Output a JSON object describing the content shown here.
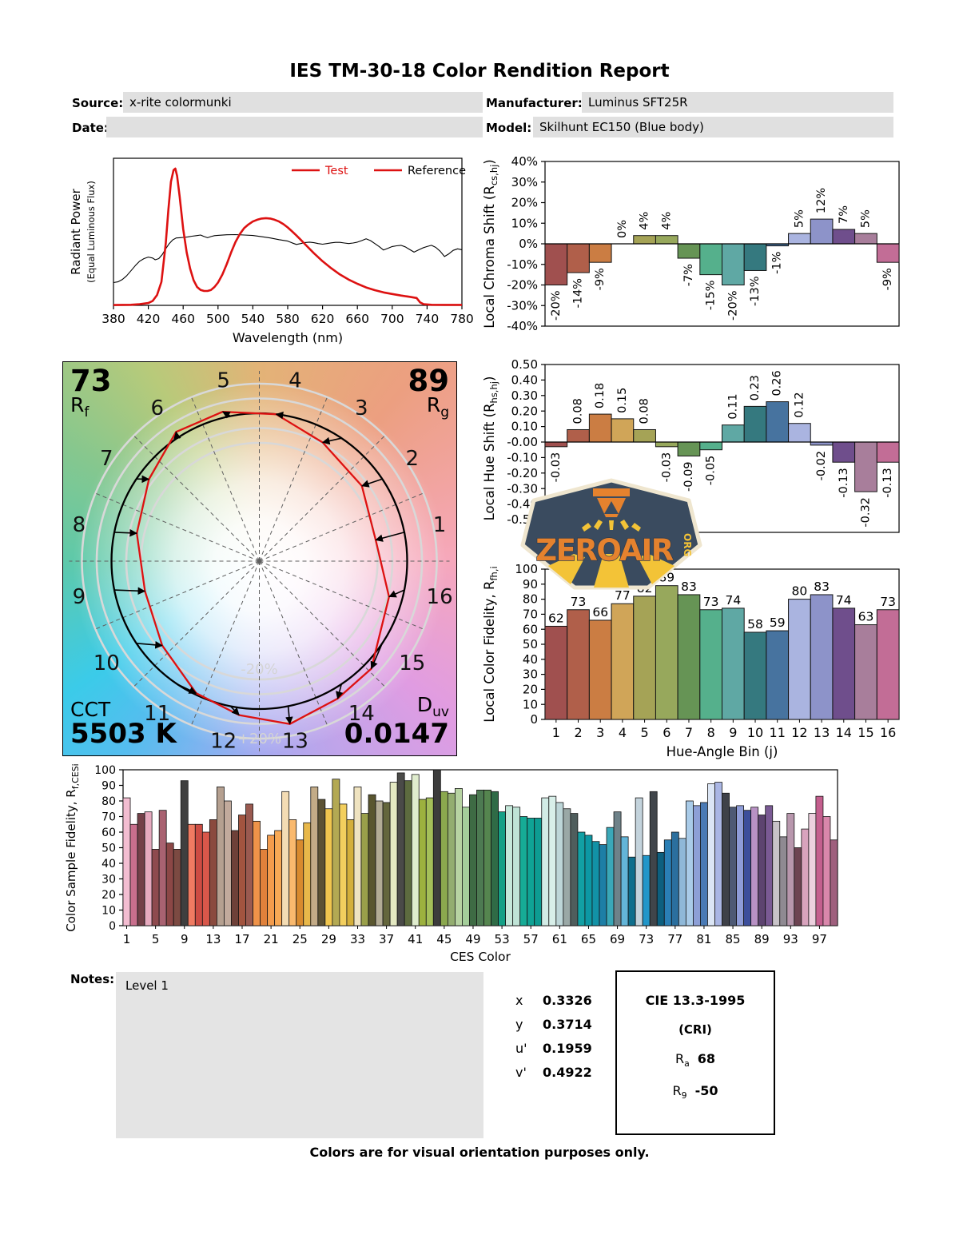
{
  "title": "IES TM-30-18 Color Rendition Report",
  "header": {
    "source_label": "Source:",
    "source_value": "x-rite colormunki",
    "manufacturer_label": "Manufacturer:",
    "manufacturer_value": "Luminus SFT25R",
    "date_label": "Date:",
    "date_value": "",
    "model_label": "Model:",
    "model_value": "Skilhunt EC150 (Blue body)"
  },
  "colors": {
    "test": "#dd1111",
    "reference": "#000000",
    "axis": "#000000",
    "ring_gray": "#d8d8d8",
    "hue_bins": [
      "#a0504f",
      "#b05f4a",
      "#cb7d43",
      "#d0a558",
      "#a5a356",
      "#97a85c",
      "#669455",
      "#55b08c",
      "#5fa8a4",
      "#35797f",
      "#47739f",
      "#aab4e0",
      "#8d93c9",
      "#6f4e8c",
      "#a87e9b",
      "#c26d96"
    ],
    "ces_bars": [
      "#f3bdd1",
      "#c96f8d",
      "#744048",
      "#e7aabf",
      "#8e4a4e",
      "#a96271",
      "#8c4746",
      "#7c4a42",
      "#3f3f3f",
      "#f07b62",
      "#cd4c43",
      "#d8574a",
      "#8a4a3e",
      "#b5a090",
      "#c2aa9c",
      "#6e4038",
      "#a2543f",
      "#9a5a50",
      "#ef9349",
      "#e0813b",
      "#f49c4c",
      "#f8a955",
      "#f3dcb4",
      "#f9b96e",
      "#d88a2e",
      "#e8b84a",
      "#c3ab87",
      "#5c5234",
      "#f0c64f",
      "#b3a953",
      "#f3cf5e",
      "#d4af3a",
      "#efe3c0",
      "#9aa04a",
      "#59562f",
      "#b3ac95",
      "#64663c",
      "#e4e9c2",
      "#4a4a48",
      "#5d6b3f",
      "#dfeccd",
      "#9cb13e",
      "#a4bf59",
      "#3c3c3c",
      "#8ba84e",
      "#93ad70",
      "#b7d3a2",
      "#a5cf9b",
      "#3e6b44",
      "#4d7a52",
      "#55854f",
      "#2f6b46",
      "#15a086",
      "#c5e8da",
      "#bfe3d6",
      "#16ab96",
      "#0fa395",
      "#0d9c92",
      "#d2ece6",
      "#d8efe9",
      "#bdd6d8",
      "#9aa8a6",
      "#4f5d5c",
      "#12a0a4",
      "#0d98a4",
      "#1292a6",
      "#1d7fa6",
      "#3aa8b8",
      "#6e8289",
      "#63b5d8",
      "#0e6e8c",
      "#c3d3dc",
      "#2196c9",
      "#40454a",
      "#0d5f7e",
      "#2a7fb5",
      "#2b6f9e",
      "#8fb8d8",
      "#a9cbe8",
      "#8d9fd6",
      "#4a7ab5",
      "#dce6f5",
      "#aab6e4",
      "#3e4148",
      "#4e5a75",
      "#8e9cd8",
      "#3c4e9b",
      "#b891c4",
      "#5d4470",
      "#7a5a94",
      "#c8c3c8",
      "#8f8a92",
      "#b897ad",
      "#6d4452",
      "#d8a3bd",
      "#ecd0de",
      "#c45f8e",
      "#d987ab",
      "#9f5f7d"
    ]
  },
  "chart_data": [
    {
      "name": "spectral_power_distribution",
      "type": "line",
      "xlabel": "Wavelength (nm)",
      "ylabel_main": "Radiant Power",
      "ylabel_sub": "(Equal Luminous Flux)",
      "xlim": [
        380,
        780
      ],
      "xticks": [
        380,
        420,
        460,
        500,
        540,
        580,
        620,
        660,
        700,
        740,
        780
      ],
      "legend": [
        "Test",
        "Reference"
      ],
      "series": [
        {
          "name": "Test",
          "points": [
            [
              380,
              0.002
            ],
            [
              400,
              0.004
            ],
            [
              410,
              0.008
            ],
            [
              420,
              0.016
            ],
            [
              425,
              0.03
            ],
            [
              430,
              0.07
            ],
            [
              435,
              0.16
            ],
            [
              440,
              0.42
            ],
            [
              443,
              0.65
            ],
            [
              446,
              0.84
            ],
            [
              449,
              0.92
            ],
            [
              451,
              0.93
            ],
            [
              453,
              0.88
            ],
            [
              456,
              0.74
            ],
            [
              460,
              0.52
            ],
            [
              464,
              0.36
            ],
            [
              468,
              0.25
            ],
            [
              472,
              0.17
            ],
            [
              476,
              0.125
            ],
            [
              480,
              0.105
            ],
            [
              484,
              0.098
            ],
            [
              488,
              0.098
            ],
            [
              492,
              0.105
            ],
            [
              496,
              0.125
            ],
            [
              500,
              0.155
            ],
            [
              505,
              0.21
            ],
            [
              510,
              0.28
            ],
            [
              515,
              0.36
            ],
            [
              520,
              0.43
            ],
            [
              525,
              0.485
            ],
            [
              530,
              0.525
            ],
            [
              535,
              0.55
            ],
            [
              540,
              0.57
            ],
            [
              545,
              0.582
            ],
            [
              550,
              0.59
            ],
            [
              555,
              0.593
            ],
            [
              560,
              0.59
            ],
            [
              565,
              0.582
            ],
            [
              570,
              0.57
            ],
            [
              575,
              0.552
            ],
            [
              580,
              0.53
            ],
            [
              585,
              0.503
            ],
            [
              590,
              0.475
            ],
            [
              595,
              0.445
            ],
            [
              600,
              0.415
            ],
            [
              610,
              0.355
            ],
            [
              620,
              0.3
            ],
            [
              630,
              0.252
            ],
            [
              640,
              0.21
            ],
            [
              650,
              0.175
            ],
            [
              660,
              0.147
            ],
            [
              670,
              0.122
            ],
            [
              680,
              0.103
            ],
            [
              690,
              0.088
            ],
            [
              700,
              0.077
            ],
            [
              710,
              0.067
            ],
            [
              720,
              0.058
            ],
            [
              728,
              0.05
            ],
            [
              732,
              0.02
            ],
            [
              736,
              0.008
            ],
            [
              745,
              0.004
            ],
            [
              760,
              0.003
            ],
            [
              780,
              0.003
            ]
          ]
        },
        {
          "name": "Reference",
          "points": [
            [
              380,
              0.155
            ],
            [
              385,
              0.16
            ],
            [
              390,
              0.175
            ],
            [
              395,
              0.2
            ],
            [
              400,
              0.235
            ],
            [
              405,
              0.27
            ],
            [
              410,
              0.3
            ],
            [
              415,
              0.318
            ],
            [
              420,
              0.328
            ],
            [
              425,
              0.322
            ],
            [
              428,
              0.31
            ],
            [
              432,
              0.318
            ],
            [
              436,
              0.345
            ],
            [
              440,
              0.385
            ],
            [
              444,
              0.42
            ],
            [
              448,
              0.445
            ],
            [
              452,
              0.458
            ],
            [
              456,
              0.46
            ],
            [
              460,
              0.462
            ],
            [
              465,
              0.465
            ],
            [
              470,
              0.47
            ],
            [
              475,
              0.474
            ],
            [
              480,
              0.478
            ],
            [
              484,
              0.468
            ],
            [
              488,
              0.46
            ],
            [
              492,
              0.468
            ],
            [
              496,
              0.474
            ],
            [
              500,
              0.476
            ],
            [
              510,
              0.48
            ],
            [
              520,
              0.481
            ],
            [
              530,
              0.478
            ],
            [
              540,
              0.475
            ],
            [
              550,
              0.467
            ],
            [
              560,
              0.458
            ],
            [
              570,
              0.447
            ],
            [
              580,
              0.437
            ],
            [
              585,
              0.425
            ],
            [
              590,
              0.414
            ],
            [
              595,
              0.42
            ],
            [
              600,
              0.427
            ],
            [
              605,
              0.43
            ],
            [
              610,
              0.426
            ],
            [
              615,
              0.42
            ],
            [
              620,
              0.416
            ],
            [
              625,
              0.42
            ],
            [
              630,
              0.425
            ],
            [
              635,
              0.428
            ],
            [
              640,
              0.428
            ],
            [
              645,
              0.424
            ],
            [
              650,
              0.42
            ],
            [
              655,
              0.424
            ],
            [
              660,
              0.43
            ],
            [
              665,
              0.44
            ],
            [
              670,
              0.452
            ],
            [
              675,
              0.44
            ],
            [
              680,
              0.42
            ],
            [
              685,
              0.4
            ],
            [
              690,
              0.376
            ],
            [
              695,
              0.388
            ],
            [
              700,
              0.4
            ],
            [
              705,
              0.405
            ],
            [
              710,
              0.408
            ],
            [
              715,
              0.398
            ],
            [
              720,
              0.38
            ],
            [
              725,
              0.362
            ],
            [
              730,
              0.376
            ],
            [
              735,
              0.39
            ],
            [
              740,
              0.4
            ],
            [
              745,
              0.408
            ],
            [
              750,
              0.394
            ],
            [
              755,
              0.368
            ],
            [
              760,
              0.332
            ],
            [
              765,
              0.35
            ],
            [
              770,
              0.374
            ],
            [
              775,
              0.384
            ],
            [
              780,
              0.378
            ]
          ]
        }
      ]
    },
    {
      "name": "local_chroma_shift",
      "type": "bar",
      "ylabel": {
        "pre": "Local Chroma Shift (R",
        "sub": "cs,hj",
        "post": ")"
      },
      "ylim": [
        -40,
        40
      ],
      "ytick_step": 10,
      "unit": "%",
      "categories": [
        1,
        2,
        3,
        4,
        5,
        6,
        7,
        8,
        9,
        10,
        11,
        12,
        13,
        14,
        15,
        16
      ],
      "values": [
        -20,
        -14,
        -9,
        0,
        4,
        4,
        -7,
        -15,
        -20,
        -13,
        -1,
        5,
        12,
        7,
        5,
        -9
      ]
    },
    {
      "name": "local_hue_shift",
      "type": "bar",
      "ylabel": {
        "pre": "Local Hue Shift (R",
        "sub": "hs,hj",
        "post": ")"
      },
      "ylim": [
        -0.5,
        0.5
      ],
      "ytick_step": 0.1,
      "categories": [
        1,
        2,
        3,
        4,
        5,
        6,
        7,
        8,
        9,
        10,
        11,
        12,
        13,
        14,
        15,
        16
      ],
      "values": [
        -0.03,
        0.08,
        0.18,
        0.15,
        0.08,
        -0.03,
        -0.09,
        -0.05,
        0.11,
        0.23,
        0.26,
        0.12,
        -0.02,
        -0.13,
        -0.32,
        -0.13
      ]
    },
    {
      "name": "local_color_fidelity",
      "type": "bar",
      "ylabel": {
        "pre": "Local Color Fidelity, R",
        "sub": "fh,i",
        "post": ""
      },
      "xlabel": "Hue-Angle Bin (j)",
      "ylim": [
        0,
        100
      ],
      "ytick_step": 10,
      "categories": [
        1,
        2,
        3,
        4,
        5,
        6,
        7,
        8,
        9,
        10,
        11,
        12,
        13,
        14,
        15,
        16
      ],
      "values": [
        62,
        73,
        66,
        77,
        82,
        89,
        83,
        73,
        74,
        58,
        59,
        80,
        83,
        74,
        63,
        73
      ]
    },
    {
      "name": "color_sample_fidelity",
      "type": "bar",
      "ylabel": {
        "pre": "Color Sample Fidelity, R",
        "sub": "f,CESi",
        "post": ""
      },
      "xlabel": "CES Color",
      "ylim": [
        0,
        100
      ],
      "ytick_step": 10,
      "xticks": [
        1,
        5,
        9,
        13,
        17,
        21,
        25,
        29,
        33,
        37,
        41,
        45,
        49,
        53,
        57,
        61,
        65,
        69,
        73,
        77,
        81,
        85,
        89,
        93,
        97
      ],
      "values": [
        82,
        65,
        72,
        73,
        49,
        74,
        53,
        49,
        93,
        65,
        65,
        60,
        68,
        89,
        80,
        61,
        71,
        78,
        67,
        49,
        58,
        61,
        86,
        68,
        55,
        66,
        89,
        81,
        75,
        94,
        78,
        68,
        89,
        72,
        84,
        80,
        79,
        92,
        98,
        93,
        97,
        81,
        82,
        100,
        86,
        85,
        88,
        76,
        84,
        87,
        87,
        86,
        73,
        77,
        76,
        70,
        69,
        69,
        82,
        83,
        79,
        75,
        72,
        60,
        58,
        54,
        52,
        63,
        73,
        57,
        44,
        82,
        45,
        86,
        47,
        55,
        60,
        56,
        80,
        77,
        79,
        91,
        92,
        85,
        76,
        77,
        74,
        76,
        71,
        77,
        67,
        57,
        72,
        50,
        62,
        72,
        83,
        70,
        55
      ]
    }
  ],
  "cvg": {
    "rf_value": "73",
    "rf_sym": "R",
    "rf_sub": "f",
    "rg_value": "89",
    "rg_sym": "R",
    "rg_sub": "g",
    "cct_label": "CCT",
    "cct_value": "5503 K",
    "duv_sym": "D",
    "duv_sub": "uv",
    "duv_value": "0.0147",
    "ring_plus": "+20%",
    "ring_minus": "-20%",
    "bins": [
      1,
      2,
      3,
      4,
      5,
      6,
      7,
      8,
      9,
      10,
      11,
      12,
      13,
      14,
      15,
      16
    ]
  },
  "logo": {
    "word": "ZEROAIR",
    "org": "ORG"
  },
  "notes": {
    "label": "Notes:",
    "text": "Level 1"
  },
  "chromaticity": {
    "rows": [
      {
        "sym": "x",
        "value": "0.3326"
      },
      {
        "sym": "y",
        "value": "0.3714"
      },
      {
        "sym": "u'",
        "value": "0.1959"
      },
      {
        "sym": "v'",
        "value": "0.4922"
      }
    ]
  },
  "cie": {
    "title": "CIE 13.3-1995",
    "subtitle": "(CRI)",
    "rows": [
      {
        "sym": "R",
        "sub": "a",
        "value": "68"
      },
      {
        "sym": "R",
        "sub": "9",
        "value": "-50"
      }
    ]
  },
  "footer": "Colors are for visual orientation purposes only."
}
